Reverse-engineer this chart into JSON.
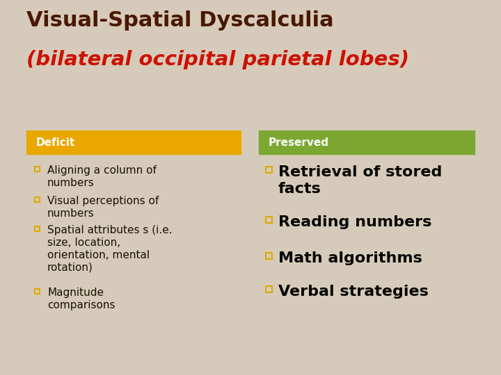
{
  "title_line1": "Visual-Spatial Dyscalculia",
  "title_line2": "(bilateral occipital parietal lobes)",
  "title_line1_color": "#4A1800",
  "title_line2_color": "#CC1100",
  "background_color": "#D6CBBA",
  "stripe_color": "#3A9AAA",
  "yellow_accent_color": "#E8A800",
  "header_deficit_color": "#E8A800",
  "header_preserved_color": "#7CA832",
  "header_text_color": "#FFFFFF",
  "deficit_items": [
    "Aligning a column of\nnumbers",
    "Visual perceptions of\nnumbers",
    "Spatial attributes s (i.e.\nsize, location,\norientation, mental\nrotation)",
    "Magnitude\ncomparisons"
  ],
  "preserved_items": [
    "Retrieval of stored\nfacts",
    "Reading numbers",
    "Math algorithms",
    "Verbal strategies"
  ],
  "bullet_color": "#DDAA00",
  "deficit_text_color": "#1A1200",
  "preserved_text_color": "#050500",
  "deficit_label": "Deficit",
  "preserved_label": "Preserved"
}
